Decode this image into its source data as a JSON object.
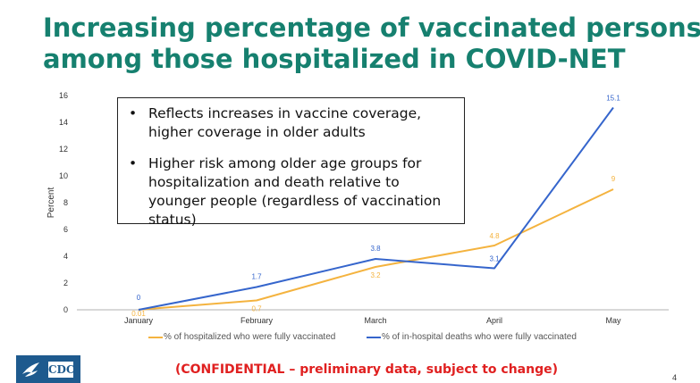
{
  "slide": {
    "title_line1": "Increasing percentage of vaccinated persons",
    "title_line2": "among those hospitalized in COVID-NET",
    "notes": [
      "Reflects increases in vaccine coverage, higher coverage in older adults",
      "Higher risk among older age groups for hospitalization and death relative to younger people (regardless of vaccination status)"
    ],
    "footer": "(CONFIDENTIAL – preliminary data, subject to change)",
    "page_number": "4",
    "logo_text": "CDC"
  },
  "chart_data": {
    "type": "line",
    "categories": [
      "January",
      "February",
      "March",
      "April",
      "May"
    ],
    "ylabel": "Percent",
    "ylim": [
      0,
      16
    ],
    "yticks": [
      0,
      2,
      4,
      6,
      8,
      10,
      12,
      14,
      16
    ],
    "grid": false,
    "legend_position": "bottom",
    "series": [
      {
        "name": "% of hospitalized who were fully vaccinated",
        "color": "#f4b33f",
        "values": [
          0.01,
          0.7,
          3.2,
          4.8,
          9
        ],
        "labels": [
          "0.01",
          "0.7",
          "3.2",
          "4.8",
          "9"
        ]
      },
      {
        "name": "% of in-hospital deaths who were fully vaccinated",
        "color": "#3565cc",
        "values": [
          0,
          1.7,
          3.8,
          3.1,
          15.1
        ],
        "labels": [
          "0",
          "1.7",
          "3.8",
          "3.1",
          "15.1"
        ]
      }
    ]
  }
}
